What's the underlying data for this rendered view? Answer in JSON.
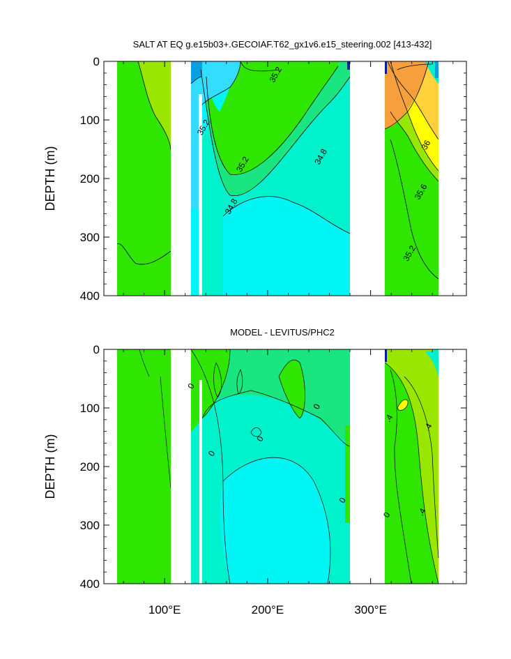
{
  "chart_data": [
    {
      "type": "contour",
      "title": "SALT AT EQ g.e15b03+.GECOIAF.T62_gx1v6.e15_steering.002 [413-432]",
      "ylabel": "DEPTH (m)",
      "ylim": [
        400,
        0
      ],
      "yticks": [
        "0",
        "100",
        "200",
        "300",
        "400"
      ],
      "contour_labels": [
        {
          "text": "35.2",
          "lon": 210,
          "depth": 25
        },
        {
          "text": "35.2",
          "lon": 140,
          "depth": 115
        },
        {
          "text": "35.2",
          "lon": 178,
          "depth": 178
        },
        {
          "text": "34.8",
          "lon": 254,
          "depth": 165
        },
        {
          "text": "34.8",
          "lon": 167,
          "depth": 250
        },
        {
          "text": "36",
          "lon": 356,
          "depth": 145
        },
        {
          "text": "35.6",
          "lon": 351,
          "depth": 225
        },
        {
          "text": "35.2",
          "lon": 340,
          "depth": 330
        }
      ],
      "colors": {
        "green_lt": "#99e600",
        "green": "#2ee600",
        "mint": "#19e680",
        "teal": "#00f2cc",
        "cyan": "#00f5f5",
        "sky": "#33ddff",
        "blue": "#0a9fe0",
        "yellow": "#ffff00",
        "gold": "#ffd23c",
        "orange": "#f5a03c",
        "navy": "#001f9b"
      }
    },
    {
      "type": "contour",
      "title": "MODEL - LEVITUS/PHC2",
      "ylabel": "DEPTH (m)",
      "ylim": [
        400,
        0
      ],
      "yticks": [
        "0",
        "100",
        "200",
        "300",
        "400"
      ],
      "contour_labels": [
        {
          "text": "0",
          "lon": 128,
          "depth": 65
        },
        {
          "text": "0",
          "lon": 148,
          "depth": 180
        },
        {
          "text": "0",
          "lon": 195,
          "depth": 155
        },
        {
          "text": "0",
          "lon": 250,
          "depth": 100
        },
        {
          "text": "0",
          "lon": 275,
          "depth": 260
        },
        {
          "text": "0",
          "lon": 318,
          "depth": 285
        },
        {
          "text": ".4",
          "lon": 320,
          "depth": 120
        },
        {
          "text": ".4",
          "lon": 358,
          "depth": 135
        },
        {
          "text": ".4",
          "lon": 352,
          "depth": 280
        }
      ],
      "colors": {
        "green_lt": "#99e600",
        "green": "#2ee600",
        "mint": "#19e680",
        "teal": "#00f2cc",
        "cyan": "#00f5f5",
        "yellow": "#ffff00",
        "navy": "#001f9b"
      }
    }
  ],
  "x_axis": {
    "tick_labels": [
      "100°E",
      "200°E",
      "300°E"
    ],
    "tick_values": [
      100,
      200,
      300
    ],
    "xlim": [
      41,
      393
    ]
  }
}
